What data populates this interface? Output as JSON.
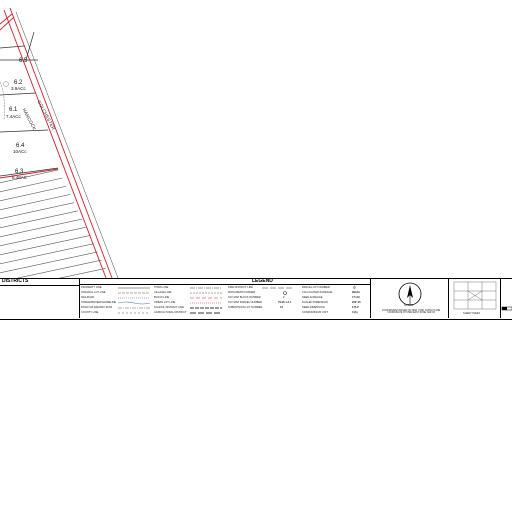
{
  "map": {
    "road_colchester": "COLCHESTER",
    "road_hancock": "HANCOCK",
    "lots": [
      {
        "id": "6.5",
        "area": ""
      },
      {
        "id": "6.2",
        "area": "3.9ACc"
      },
      {
        "id": "6.1",
        "area": "7.4ACc"
      },
      {
        "id": "6.4",
        "area": "10ACc"
      },
      {
        "id": "6.3",
        "area": "8.48AC"
      }
    ]
  },
  "legend": {
    "districts_label": "DISTRICTS",
    "title": "LEGEND",
    "col1": [
      "PROPERTY LINE",
      "ORIGINAL LOT LINE",
      "RAILROAD",
      "STREAM/RIVER/SHORELINE",
      "ROAD OR RAILWAY ROW",
      "COUNTY LINE"
    ],
    "col2": [
      "TOWN LINE",
      "VILLAGE LINE",
      "BLOCK LINE",
      "URBAN LOT LINE",
      "SCHOOL DISTRICT LINE",
      "AGRICULTURAL DISTRICT"
    ],
    "col3": [
      "FIRE DISTRICT LINE",
      "MONUMENT/CORNER",
      "TAX MAP BLOCK NUMBER",
      "TAX MAP PARCEL NUMBER",
      "SUBDIVISION LOT NUMBER"
    ],
    "col3_samples": [
      "",
      "",
      "2",
      "79.00-1-4.1",
      "12"
    ],
    "col4": [
      "PARCEL LOT NUMBER",
      "CALCULATED ACREAGE",
      "DEED ACREAGE",
      "SCALED DIMENSION",
      "DEED DIMENSION",
      "CONDOMINIUM UNIT"
    ],
    "col4_samples": [
      "©",
      "99ACc",
      "7.5 AC",
      "200' 35",
      "175.2'",
      "C(A)"
    ],
    "north_label": "NORTH",
    "grid_note": "COORDINATES BASED ON NEW YORK STATE PLANE COORDINATE SYSTEM EAST ZONE NAD 83",
    "sheet_index": "SHEET INDEX"
  }
}
